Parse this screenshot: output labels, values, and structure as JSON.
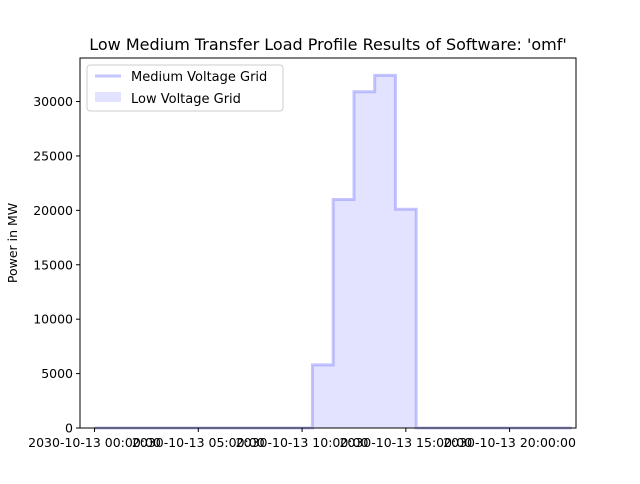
{
  "chart_data": {
    "type": "step-area",
    "title": "Low Medium Transfer Load Profile Results of Software: 'omf'",
    "xlabel": "",
    "ylabel": "Power in MW",
    "x_unit": "hour",
    "x_ticks": [
      {
        "hour": 0,
        "label": "2030-10-13 00:00:00"
      },
      {
        "hour": 5,
        "label": "2030-10-13 05:00:00"
      },
      {
        "hour": 10,
        "label": "2030-10-13 10:00:00"
      },
      {
        "hour": 15,
        "label": "2030-10-13 15:00:00"
      },
      {
        "hour": 20,
        "label": "2030-10-13 20:00:00"
      }
    ],
    "y_ticks": [
      0,
      5000,
      10000,
      15000,
      20000,
      25000,
      30000
    ],
    "xlim": [
      -0.7,
      23.2
    ],
    "ylim": [
      0,
      34000
    ],
    "grid": false,
    "legend_position": "top-left",
    "hours": [
      0,
      1,
      2,
      3,
      4,
      5,
      6,
      7,
      8,
      9,
      10,
      11,
      12,
      13,
      14,
      15,
      16,
      17,
      18,
      19,
      20,
      21,
      22,
      23
    ],
    "series": [
      {
        "name": "Medium Voltage Grid",
        "kind": "line",
        "color": "#8080ff",
        "values": [
          0,
          0,
          0,
          0,
          0,
          0,
          0,
          0,
          0,
          0,
          0,
          5800,
          21000,
          30900,
          32400,
          20100,
          0,
          0,
          0,
          0,
          0,
          0,
          0,
          0
        ]
      },
      {
        "name": "Low Voltage Grid",
        "kind": "fill",
        "color": "#ccccff",
        "values": [
          0,
          0,
          0,
          0,
          0,
          0,
          0,
          0,
          0,
          0,
          0,
          5800,
          21000,
          30900,
          32400,
          20100,
          0,
          0,
          0,
          0,
          0,
          0,
          0,
          0
        ]
      }
    ]
  }
}
